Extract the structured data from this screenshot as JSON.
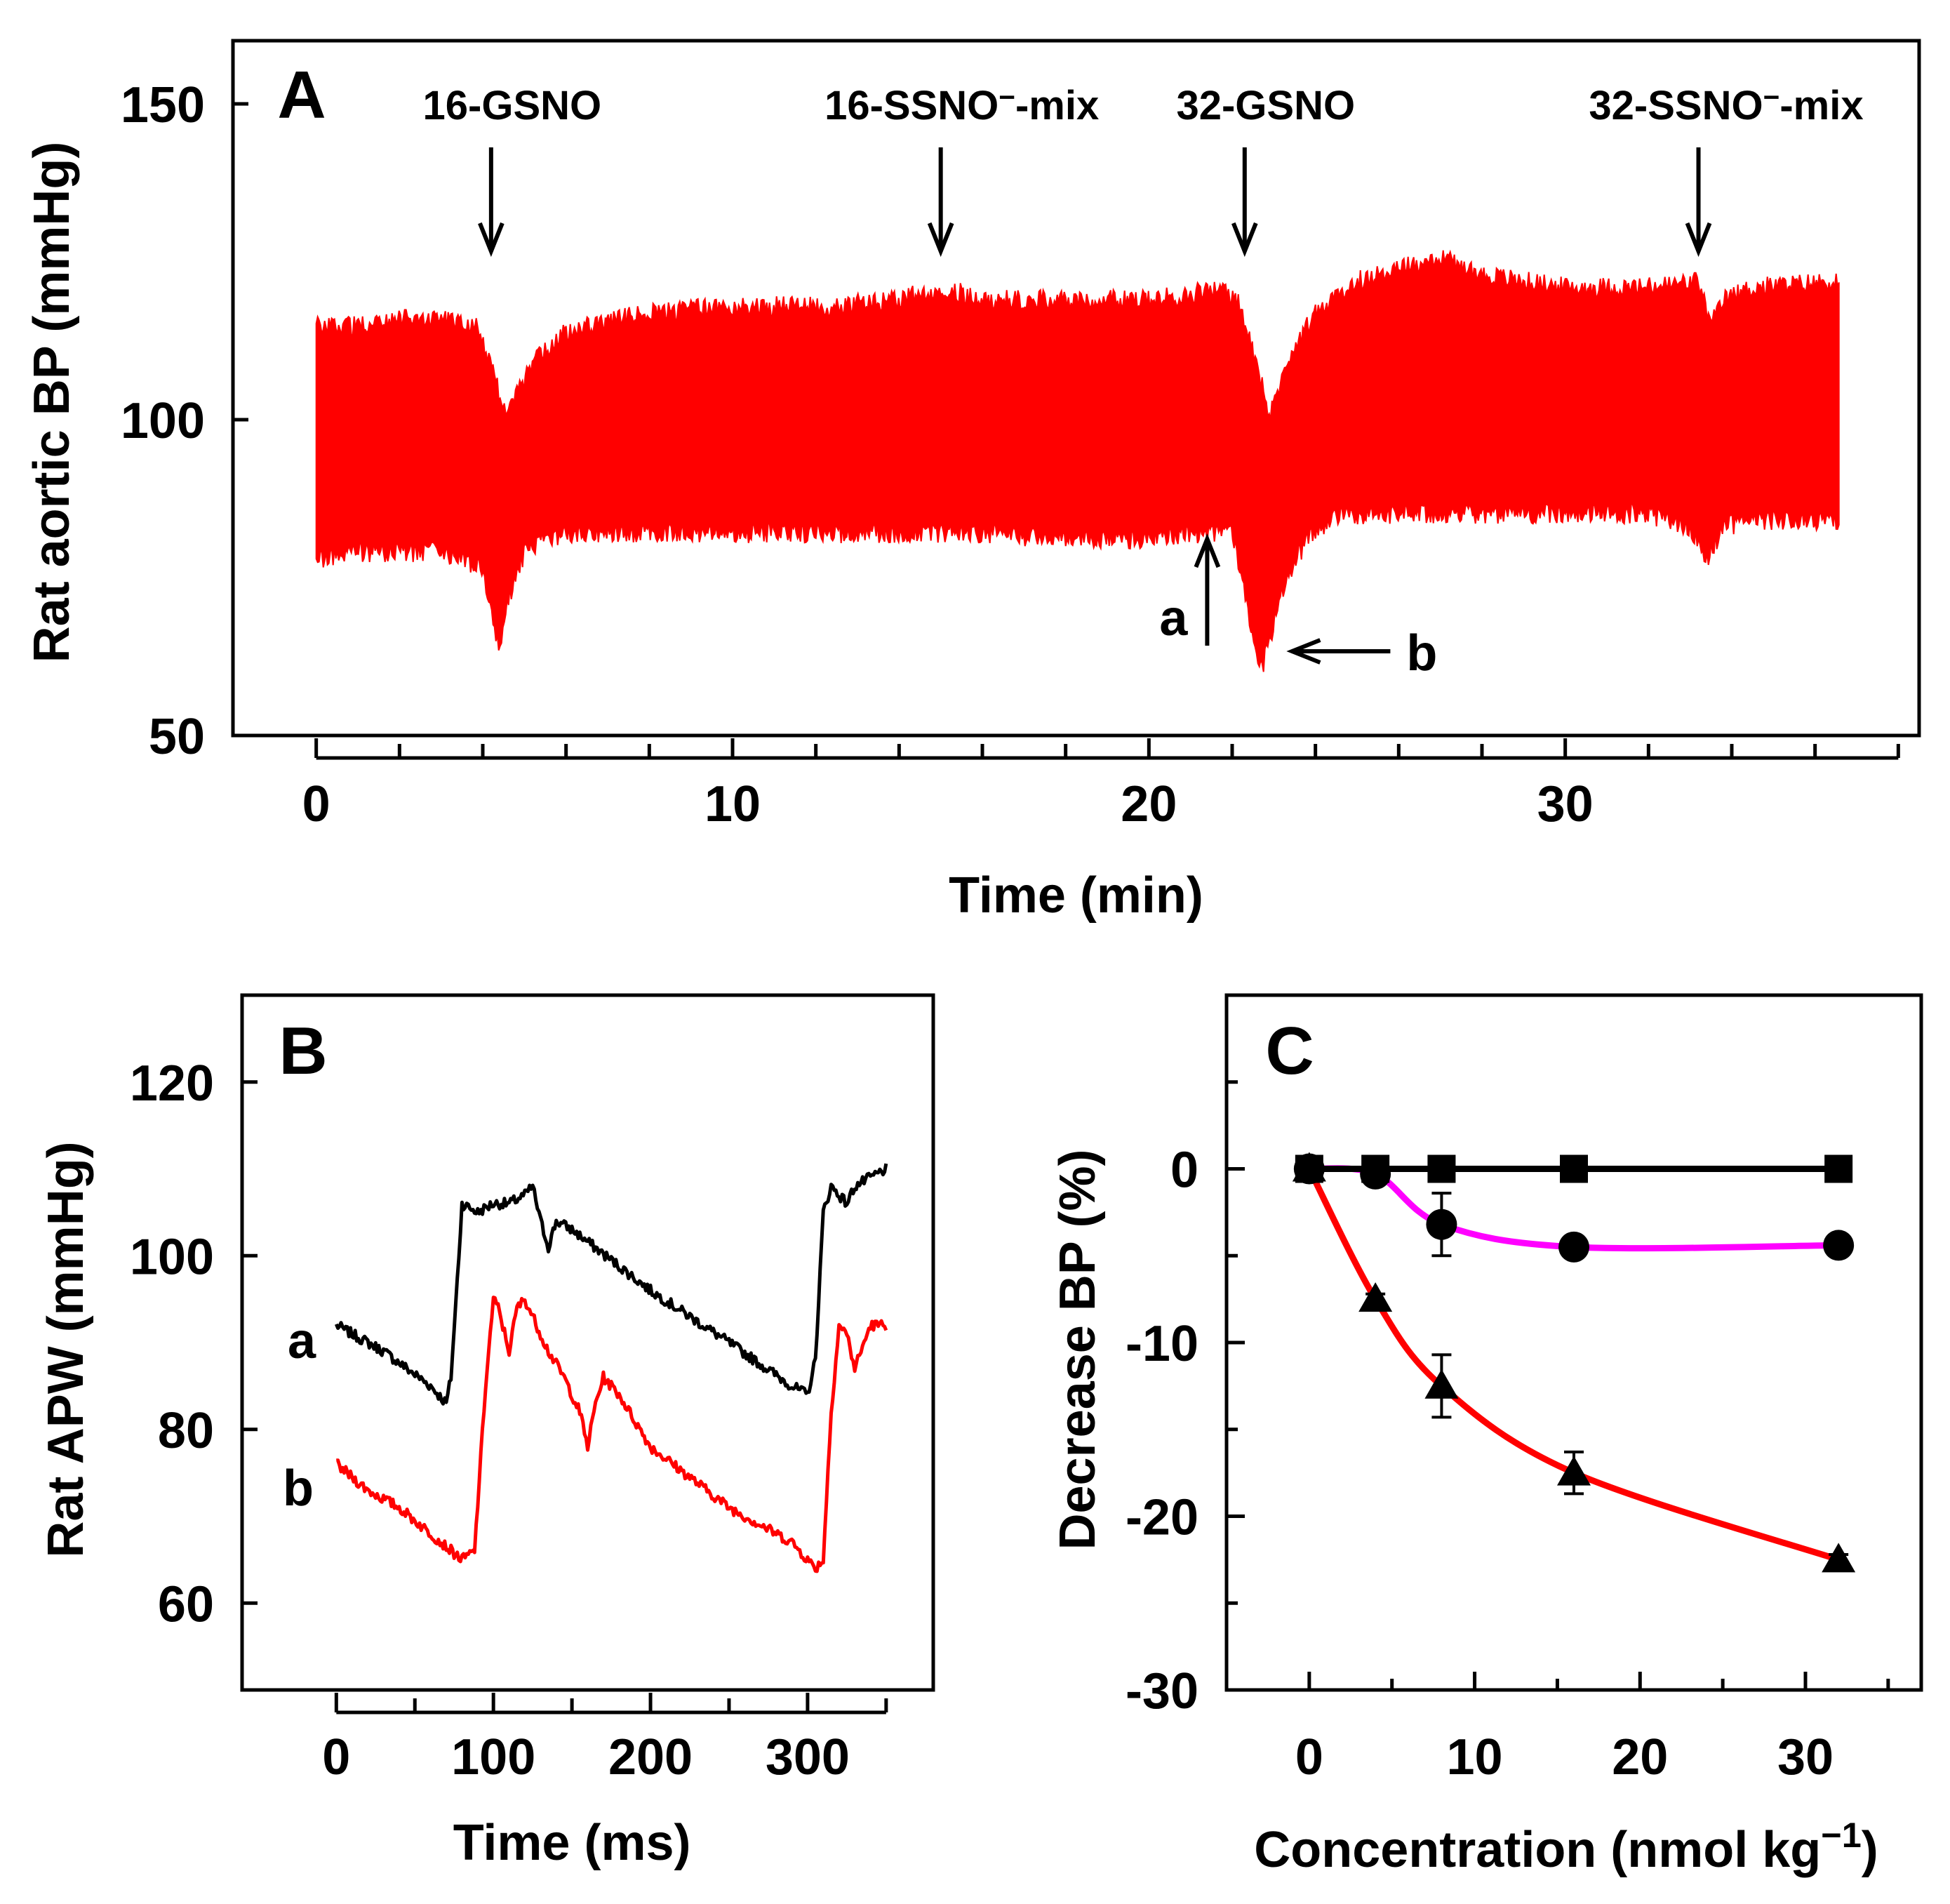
{
  "chart_data": [
    {
      "panel": "A",
      "type": "line",
      "xlabel": "Time (min)",
      "ylabel": "Rat aortic BP (mmHg)",
      "xlim": [
        -2,
        38.5
      ],
      "ylim": [
        50,
        160
      ],
      "xticks": [
        "0",
        "10",
        "20",
        "30"
      ],
      "xtick_values": [
        0,
        10,
        20,
        30
      ],
      "yticks": [
        "50",
        "100",
        "150"
      ],
      "ytick_values": [
        50,
        100,
        150
      ],
      "color": "#ff0000",
      "series": [
        {
          "name": "systolic envelope",
          "x": [
            0,
            1,
            2,
            3,
            3.9,
            4.3,
            4.6,
            5.2,
            6,
            8,
            10,
            12,
            14,
            15,
            16,
            18,
            20,
            21,
            21.8,
            22.2,
            22.6,
            22.9,
            23.3,
            24,
            25,
            26,
            27,
            28,
            30,
            32,
            33.2,
            33.5,
            33.8,
            34.5,
            36.6
          ],
          "y": [
            114,
            114,
            115,
            115,
            114,
            105,
            100,
            108,
            113,
            116,
            117,
            117,
            118,
            120,
            118,
            118,
            118,
            119,
            120,
            117,
            107,
            100,
            108,
            116,
            121,
            123,
            125,
            122,
            120,
            120,
            121,
            114,
            118,
            120,
            121
          ]
        },
        {
          "name": "diastolic envelope",
          "x": [
            0,
            1,
            2,
            3,
            4,
            4.2,
            4.4,
            4.6,
            5,
            5.5,
            6,
            8,
            10,
            12,
            14,
            16,
            18,
            20,
            21,
            22,
            22.4,
            22.7,
            22.9,
            23.3,
            23.8,
            24.5,
            25,
            26,
            28,
            30,
            32,
            33,
            33.4,
            33.8,
            34.5,
            36.6
          ],
          "y": [
            79,
            80,
            80,
            80,
            77,
            70,
            64,
            72,
            80,
            82,
            83,
            83,
            83,
            83,
            83,
            83,
            82,
            82,
            83,
            83,
            70,
            61,
            66,
            76,
            82,
            86,
            86,
            86,
            86,
            86,
            86,
            84,
            79,
            84,
            85,
            85
          ]
        }
      ],
      "annotations": [
        {
          "label_pre": "16-GSNO",
          "sup": "",
          "label_post": "",
          "x": 4.2,
          "direction": "down"
        },
        {
          "label_pre": "16-SSNO",
          "sup": "−",
          "label_post": "-mix",
          "x": 15,
          "direction": "down"
        },
        {
          "label_pre": "32-GSNO",
          "sup": "",
          "label_post": "",
          "x": 22.3,
          "direction": "down"
        },
        {
          "label_pre": "32-SSNO",
          "sup": "−",
          "label_post": "-mix",
          "x": 33.2,
          "direction": "down"
        }
      ],
      "marker_a": {
        "label": "a",
        "x": 21.4
      },
      "marker_b": {
        "label": "b",
        "x": 22.9
      }
    },
    {
      "panel": "B",
      "type": "line",
      "xlabel": "Time (ms)",
      "ylabel": "Rat APW (mmHg)",
      "xlim": [
        -60,
        380
      ],
      "ylim": [
        50,
        130
      ],
      "xticks": [
        "0",
        "100",
        "200",
        "300"
      ],
      "xtick_values": [
        0,
        100,
        200,
        300
      ],
      "yticks": [
        "60",
        "80",
        "100",
        "120"
      ],
      "ytick_values": [
        60,
        80,
        100,
        120
      ],
      "series": [
        {
          "name": "a",
          "color": "#000000",
          "x": [
            0,
            30,
            60,
            70,
            73,
            78,
            80,
            90,
            100,
            110,
            120,
            125,
            130,
            135,
            140,
            150,
            200,
            250,
            290,
            300,
            305,
            310,
            315,
            320,
            325,
            330,
            340,
            350
          ],
          "y": [
            92,
            89,
            85,
            83,
            86,
            100,
            106,
            105,
            106,
            106,
            107,
            108,
            104,
            101,
            104,
            103,
            96,
            90,
            85,
            84,
            88,
            105,
            108,
            107,
            106,
            108,
            109,
            110
          ]
        },
        {
          "name": "b",
          "color": "#ff0000",
          "x": [
            0,
            20,
            40,
            60,
            80,
            88,
            95,
            100,
            103,
            110,
            115,
            120,
            125,
            135,
            145,
            155,
            160,
            165,
            170,
            180,
            200,
            250,
            290,
            305,
            310,
            315,
            320,
            325,
            330,
            340,
            350
          ],
          "y": [
            76,
            73,
            71,
            68,
            65,
            66,
            85,
            95,
            94,
            89,
            94,
            95,
            93,
            89,
            86,
            82,
            78,
            83,
            86,
            84,
            78,
            71,
            67,
            64,
            65,
            82,
            92,
            91,
            87,
            92,
            92
          ]
        }
      ]
    },
    {
      "panel": "C",
      "type": "line",
      "xlabel_pre": "Concentration (nmol kg",
      "xlabel_sup": "−1",
      "xlabel_post": ")",
      "ylabel": "Decrease BP (%)",
      "xlim": [
        -5,
        37
      ],
      "ylim": [
        -30,
        10
      ],
      "xticks": [
        "0",
        "10",
        "20",
        "30"
      ],
      "xtick_values": [
        0,
        10,
        20,
        30
      ],
      "yticks": [
        "-30",
        "-20",
        "-10",
        "0"
      ],
      "ytick_values": [
        -30,
        -20,
        -10,
        0
      ],
      "series": [
        {
          "name": "squares",
          "marker": "square",
          "color": "#000000",
          "x": [
            0,
            4,
            8,
            16,
            32
          ],
          "y": [
            0,
            0,
            0,
            0,
            0
          ],
          "err": [
            0,
            0,
            0,
            0,
            0
          ]
        },
        {
          "name": "circles",
          "marker": "circle",
          "color": "#ff00ff",
          "x": [
            0,
            4,
            8,
            16,
            32
          ],
          "y": [
            0,
            -0.3,
            -3.2,
            -4.5,
            -4.4
          ],
          "err": [
            0,
            0.3,
            1.8,
            0.3,
            0.3
          ]
        },
        {
          "name": "triangles",
          "marker": "triangle",
          "color": "#ff0000",
          "x": [
            0,
            4,
            8,
            16,
            32
          ],
          "y": [
            0,
            -7.5,
            -12.5,
            -17.5,
            -22.5
          ],
          "err": [
            0,
            0.3,
            1.8,
            1.2,
            0.3
          ]
        }
      ]
    }
  ]
}
